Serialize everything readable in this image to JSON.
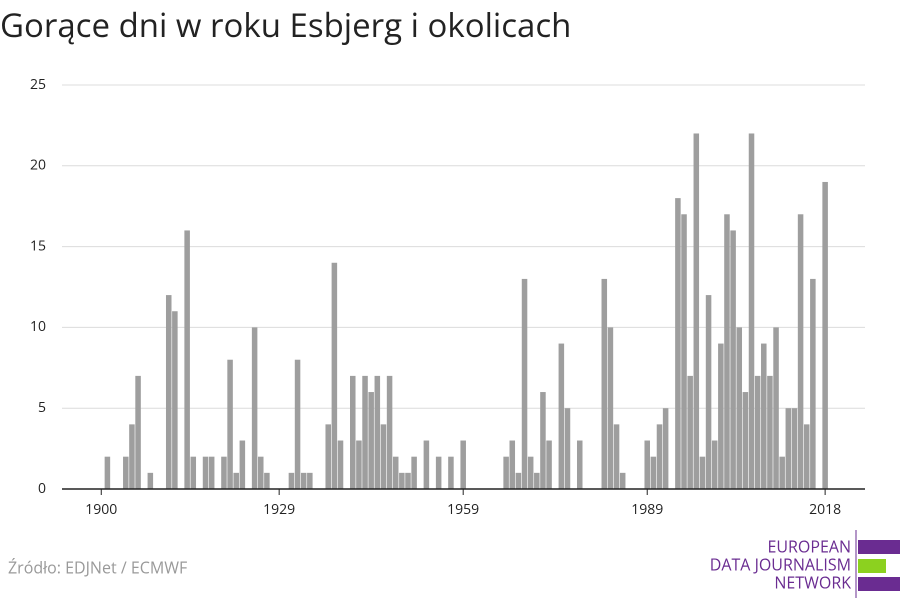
{
  "chart_data": {
    "type": "bar",
    "title": "Gorące dni w roku Esbjerg i okolicach",
    "source": "Źródło: EDJNet / ECMWF",
    "logo": [
      "EUROPEAN",
      "DATA JOURNALISM",
      "NETWORK"
    ],
    "color": "#9e9e9e",
    "grid": true,
    "x": [
      1901,
      1904,
      1905,
      1906,
      1908,
      1911,
      1912,
      1914,
      1915,
      1917,
      1918,
      1920,
      1921,
      1922,
      1923,
      1925,
      1926,
      1927,
      1931,
      1932,
      1933,
      1934,
      1937,
      1938,
      1939,
      1941,
      1942,
      1943,
      1944,
      1945,
      1946,
      1947,
      1948,
      1949,
      1950,
      1951,
      1953,
      1955,
      1957,
      1959,
      1966,
      1967,
      1968,
      1969,
      1970,
      1971,
      1972,
      1973,
      1975,
      1976,
      1978,
      1982,
      1983,
      1984,
      1985,
      1989,
      1990,
      1991,
      1992,
      1994,
      1995,
      1996,
      1997,
      1998,
      1999,
      2000,
      2001,
      2002,
      2003,
      2004,
      2005,
      2006,
      2007,
      2008,
      2009,
      2010,
      2011,
      2012,
      2013,
      2014,
      2015,
      2016,
      2018
    ],
    "values": [
      2,
      2,
      4,
      7,
      1,
      12,
      11,
      16,
      2,
      2,
      2,
      2,
      8,
      1,
      3,
      10,
      2,
      1,
      1,
      8,
      1,
      1,
      4,
      14,
      3,
      7,
      3,
      7,
      6,
      7,
      4,
      7,
      2,
      1,
      1,
      2,
      3,
      2,
      2,
      3,
      2,
      3,
      1,
      13,
      2,
      1,
      6,
      3,
      9,
      5,
      3,
      13,
      10,
      4,
      1,
      3,
      2,
      4,
      5,
      18,
      17,
      7,
      22,
      2,
      12,
      3,
      9,
      17,
      16,
      10,
      6,
      22,
      7,
      9,
      7,
      10,
      2,
      5,
      5,
      17,
      4,
      13,
      19
    ],
    "xlim": [
      1893.6,
      2024.5
    ],
    "xticks": [
      1900,
      1929,
      1959,
      1989,
      2018
    ],
    "ylim": [
      0,
      25
    ],
    "yticks": [
      0,
      5,
      10,
      15,
      20,
      25
    ]
  }
}
